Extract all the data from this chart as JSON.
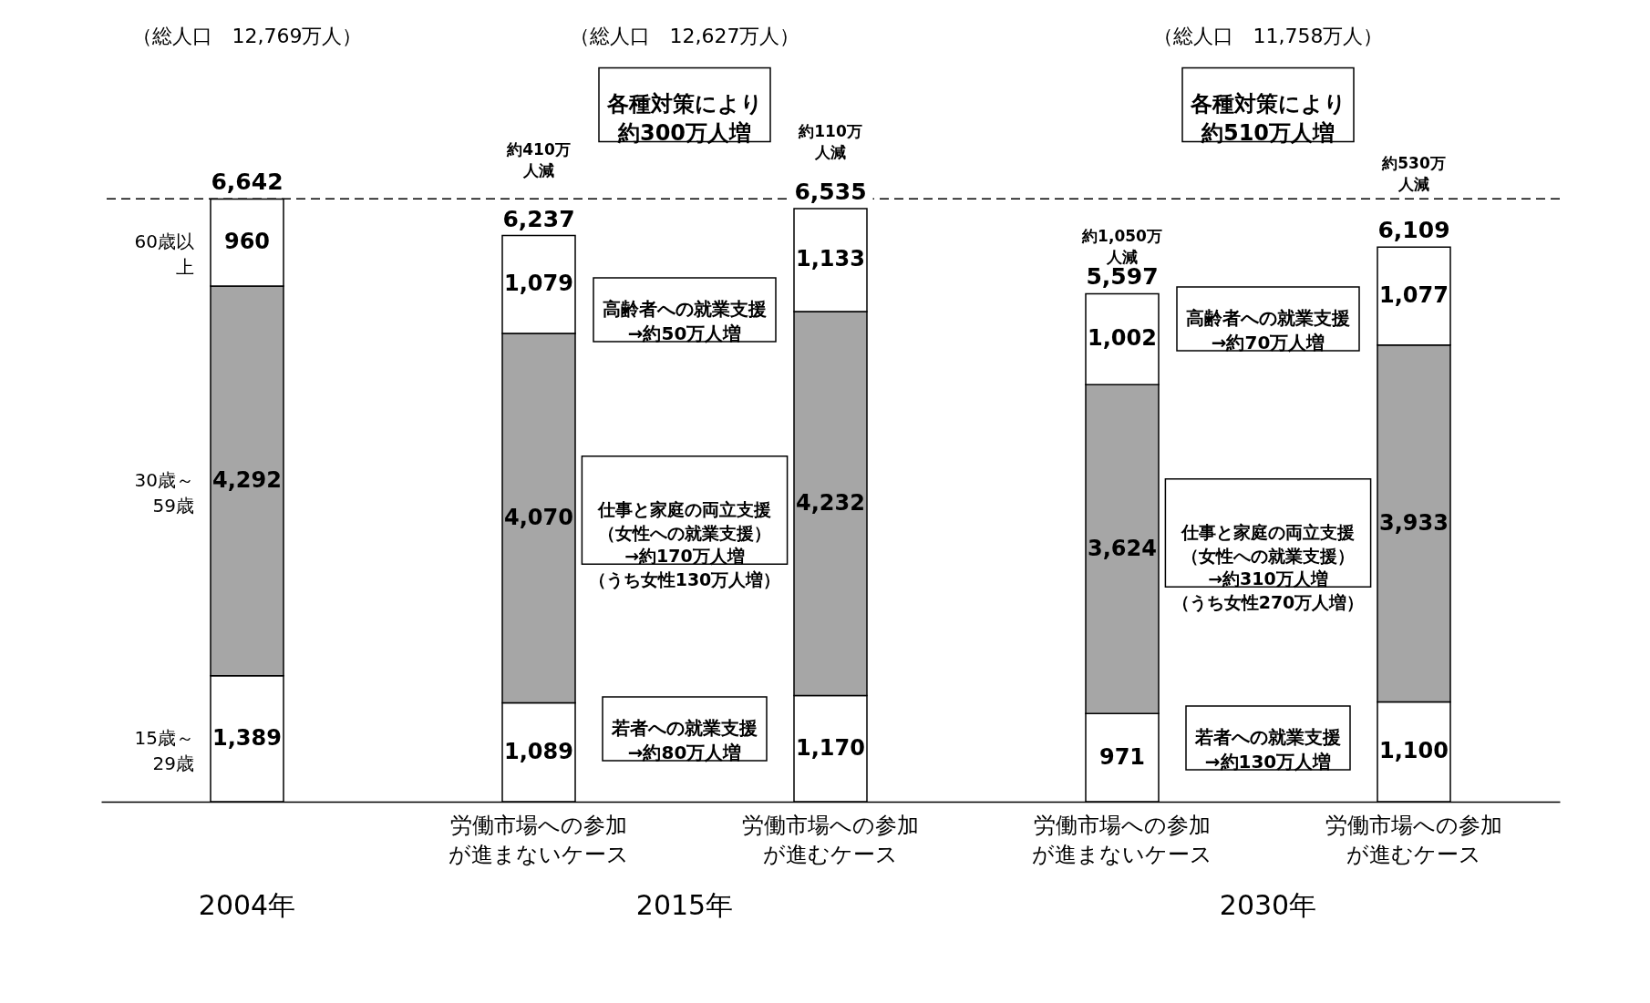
{
  "chart_data": {
    "type": "bar",
    "stacked": true,
    "categories": [
      null,
      "労働市場への参加が進まないケース",
      "労働市場への参加が進むケース",
      "労働市場への参加が進まないケース",
      "労働市場への参加が進むケース"
    ],
    "series": [
      {
        "name": "15歳～29歳",
        "color": "#ffffff",
        "values": [
          1389,
          1089,
          1170,
          971,
          1100
        ],
        "value_labels": [
          "1,389",
          "1,089",
          "1,170",
          "971",
          "1,100"
        ]
      },
      {
        "name": "30歳～59歳",
        "color": "#a6a6a6",
        "values": [
          4292,
          4070,
          4232,
          3624,
          3933
        ],
        "value_labels": [
          "4,292",
          "4,070",
          "4,232",
          "3,624",
          "3,933"
        ]
      },
      {
        "name": "60歳以上",
        "color": "#ffffff",
        "values": [
          960,
          1079,
          1133,
          1002,
          1077
        ],
        "value_labels": [
          "960",
          "1,079",
          "1,133",
          "1,002",
          "1,077"
        ]
      }
    ],
    "totals": [
      "6,642",
      "6,237",
      "6,535",
      "5,597",
      "6,109"
    ],
    "ref_lines": [
      {
        "axis": "y",
        "value": 6642,
        "line_style": "dashed"
      }
    ],
    "annotations": [
      "（総人口　12,769万人）",
      "（総人口　12,627万人）",
      "（総人口　11,758万人）",
      "各種対策により約300万人増",
      "約410万人減",
      "約110万人減",
      "各種対策により約510万人増",
      "約1,050万人減",
      "約530万人減",
      "高齢者への就業支援→約50万人増",
      "仕事と家庭の両立支援（女性への就業支援）→約170万人増（うち女性130万人増）",
      "若者への就業支援→約80万人増",
      "高齢者への就業支援→約70万人増",
      "仕事と家庭の両立支援（女性への就業支援）→約310万人増（うち女性270万人増）",
      "若者への就業支援→約130万人増",
      "2004年",
      "2015年",
      "2030年"
    ]
  }
}
